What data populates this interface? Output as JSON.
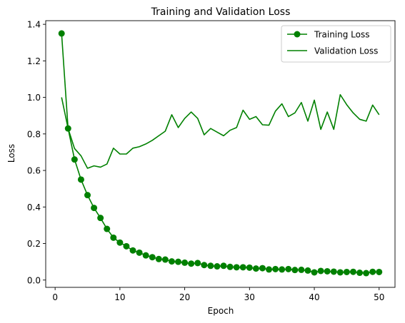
{
  "chart_data": {
    "type": "line",
    "title": "Training and Validation Loss",
    "xlabel": "Epoch",
    "ylabel": "Loss",
    "xlim": [
      -1.45,
      52.45
    ],
    "ylim": [
      -0.04,
      1.42
    ],
    "xticks": [
      0,
      10,
      20,
      30,
      40,
      50
    ],
    "yticks": [
      0.0,
      0.2,
      0.4,
      0.6,
      0.8,
      1.0,
      1.2,
      1.4
    ],
    "xtick_labels": [
      "0",
      "10",
      "20",
      "30",
      "40",
      "50"
    ],
    "ytick_labels": [
      "0.0",
      "0.2",
      "0.4",
      "0.6",
      "0.8",
      "1.0",
      "1.2",
      "1.4"
    ],
    "grid": false,
    "legend_position": "upper-right",
    "x": [
      1,
      2,
      3,
      4,
      5,
      6,
      7,
      8,
      9,
      10,
      11,
      12,
      13,
      14,
      15,
      16,
      17,
      18,
      19,
      20,
      21,
      22,
      23,
      24,
      25,
      26,
      27,
      28,
      29,
      30,
      31,
      32,
      33,
      34,
      35,
      36,
      37,
      38,
      39,
      40,
      41,
      42,
      43,
      44,
      45,
      46,
      47,
      48,
      49,
      50
    ],
    "series": [
      {
        "name": "Training Loss",
        "color": "#008000",
        "marker": "circle",
        "values": [
          1.35,
          0.83,
          0.66,
          0.55,
          0.465,
          0.395,
          0.34,
          0.28,
          0.232,
          0.205,
          0.185,
          0.162,
          0.15,
          0.135,
          0.125,
          0.115,
          0.112,
          0.102,
          0.1,
          0.095,
          0.09,
          0.093,
          0.082,
          0.078,
          0.075,
          0.078,
          0.072,
          0.07,
          0.07,
          0.068,
          0.063,
          0.065,
          0.058,
          0.06,
          0.058,
          0.06,
          0.055,
          0.056,
          0.052,
          0.042,
          0.05,
          0.048,
          0.046,
          0.042,
          0.044,
          0.045,
          0.04,
          0.038,
          0.045,
          0.044
        ]
      },
      {
        "name": "Validation Loss",
        "color": "#008000",
        "marker": "none",
        "values": [
          1.0,
          0.83,
          0.72,
          0.68,
          0.612,
          0.625,
          0.618,
          0.635,
          0.722,
          0.69,
          0.69,
          0.722,
          0.73,
          0.745,
          0.765,
          0.79,
          0.815,
          0.905,
          0.835,
          0.885,
          0.92,
          0.885,
          0.795,
          0.83,
          0.81,
          0.79,
          0.82,
          0.835,
          0.93,
          0.88,
          0.895,
          0.85,
          0.848,
          0.925,
          0.965,
          0.895,
          0.915,
          0.972,
          0.87,
          0.985,
          0.825,
          0.92,
          0.825,
          1.015,
          0.96,
          0.915,
          0.88,
          0.87,
          0.958,
          0.905
        ]
      }
    ]
  }
}
